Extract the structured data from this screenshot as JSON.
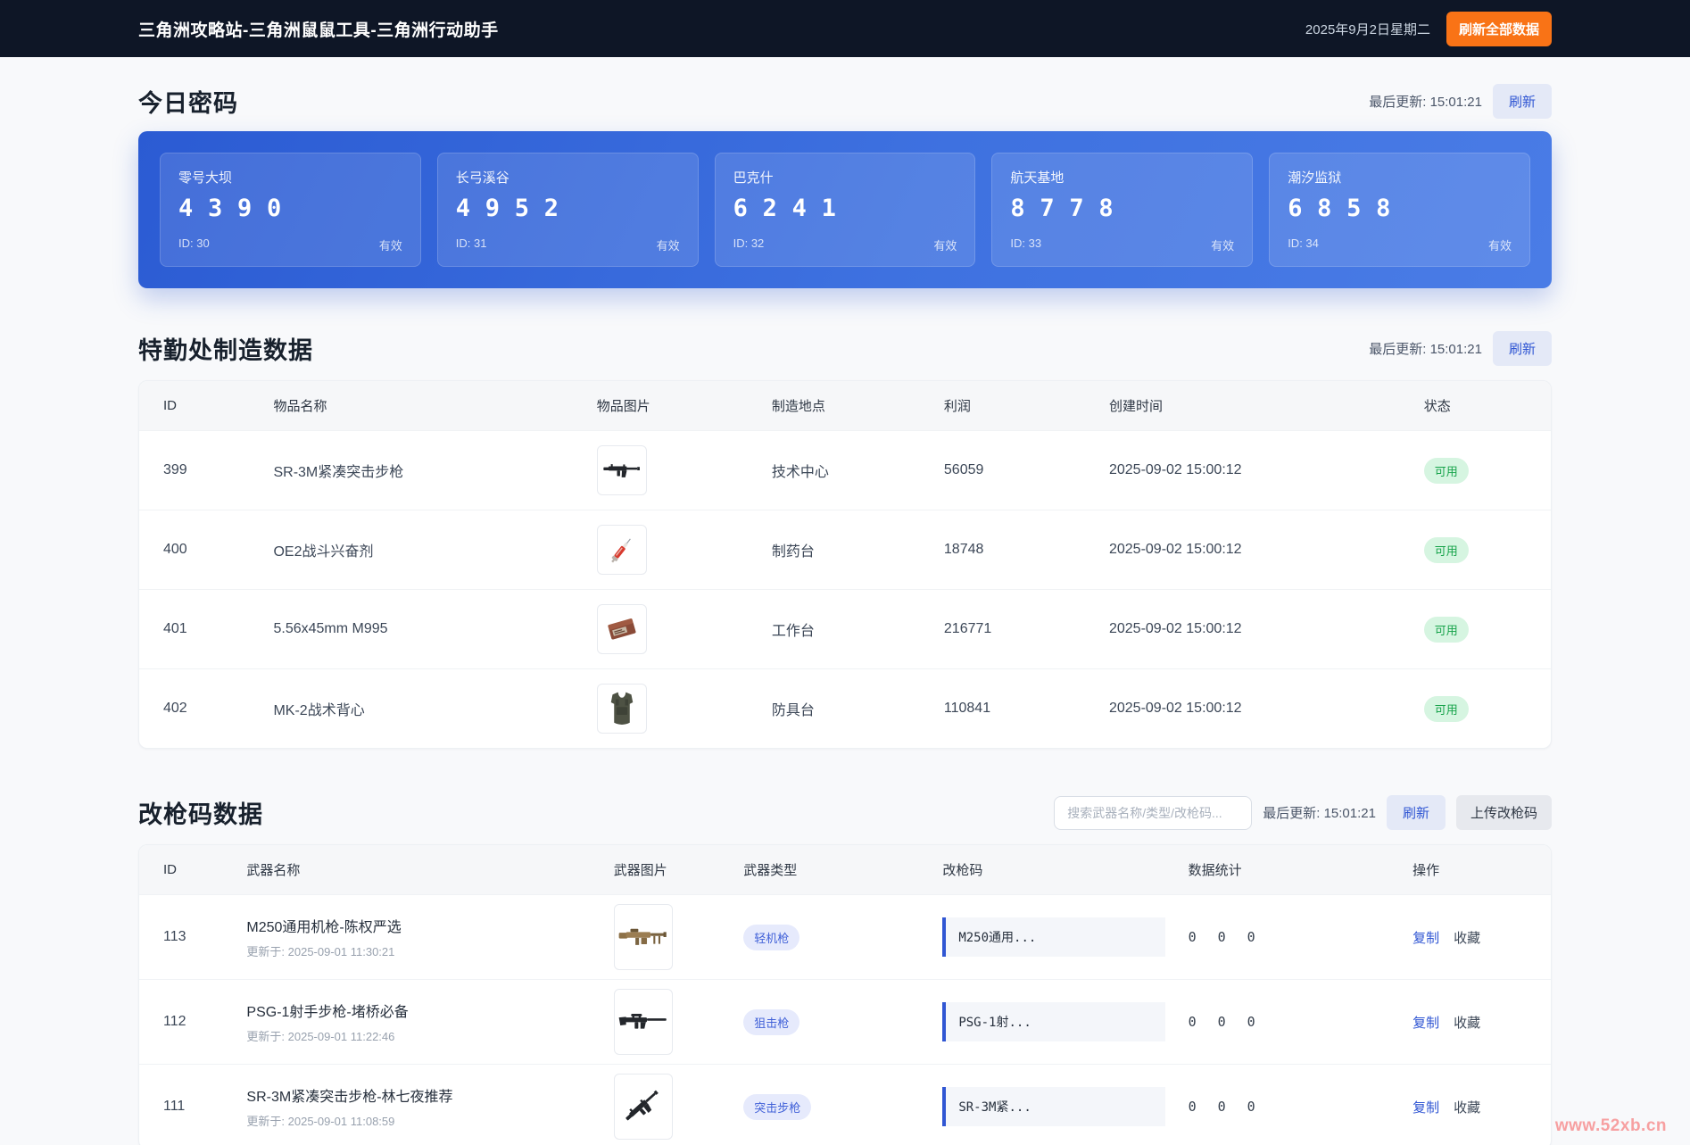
{
  "colors": {
    "accent_blue": "#3056d3",
    "orange": "#f97316",
    "panel_blue": "#2b5bd3",
    "status_green": "#16a34a",
    "badge_blue_text": "#4161d8"
  },
  "navbar": {
    "title": "三角洲攻略站-三角洲鼠鼠工具-三角洲行动助手",
    "date": "2025年9月2日星期二",
    "refresh_all_label": "刷新全部数据"
  },
  "password_section": {
    "title": "今日密码",
    "last_update": "最后更新: 15:01:21",
    "refresh_label": "刷新",
    "cards": [
      {
        "map": "零号大坝",
        "code": "4390",
        "id_label": "ID: 30",
        "status": "有效"
      },
      {
        "map": "长弓溪谷",
        "code": "4952",
        "id_label": "ID: 31",
        "status": "有效"
      },
      {
        "map": "巴克什",
        "code": "6241",
        "id_label": "ID: 32",
        "status": "有效"
      },
      {
        "map": "航天基地",
        "code": "8778",
        "id_label": "ID: 33",
        "status": "有效"
      },
      {
        "map": "潮汐监狱",
        "code": "6858",
        "id_label": "ID: 34",
        "status": "有效"
      }
    ]
  },
  "craft_section": {
    "title": "特勤处制造数据",
    "last_update": "最后更新: 15:01:21",
    "refresh_label": "刷新",
    "headers": [
      "ID",
      "物品名称",
      "物品图片",
      "制造地点",
      "利润",
      "创建时间",
      "状态"
    ],
    "rows": [
      {
        "id": "399",
        "name": "SR-3M紧凑突击步枪",
        "image": "rifle-compact",
        "place": "技术中心",
        "profit": "56059",
        "created": "2025-09-02 15:00:12",
        "status": "可用"
      },
      {
        "id": "400",
        "name": "OE2战斗兴奋剂",
        "image": "syringe",
        "place": "制药台",
        "profit": "18748",
        "created": "2025-09-02 15:00:12",
        "status": "可用"
      },
      {
        "id": "401",
        "name": "5.56x45mm M995",
        "image": "ammo-box",
        "place": "工作台",
        "profit": "216771",
        "created": "2025-09-02 15:00:12",
        "status": "可用"
      },
      {
        "id": "402",
        "name": "MK-2战术背心",
        "image": "vest",
        "place": "防具台",
        "profit": "110841",
        "created": "2025-09-02 15:00:12",
        "status": "可用"
      }
    ]
  },
  "mod_section": {
    "title": "改枪码数据",
    "search_placeholder": "搜索武器名称/类型/改枪码...",
    "last_update": "最后更新: 15:01:21",
    "refresh_label": "刷新",
    "upload_label": "上传改枪码",
    "headers": [
      "ID",
      "武器名称",
      "武器图片",
      "武器类型",
      "改枪码",
      "数据统计",
      "操作"
    ],
    "rows": [
      {
        "id": "113",
        "name": "M250通用机枪-陈权严选",
        "updated": "更新于: 2025-09-01 11:30:21",
        "image": "lmg",
        "type": "轻机枪",
        "code": "M250通用...",
        "stats": [
          "0",
          "0",
          "0"
        ],
        "copy_label": "复制",
        "fav_label": "收藏"
      },
      {
        "id": "112",
        "name": "PSG-1射手步枪-堵桥必备",
        "updated": "更新于: 2025-09-01 11:22:46",
        "image": "dmr",
        "type": "狙击枪",
        "code": "PSG-1射...",
        "stats": [
          "0",
          "0",
          "0"
        ],
        "copy_label": "复制",
        "fav_label": "收藏"
      },
      {
        "id": "111",
        "name": "SR-3M紧凑突击步枪-林七夜推荐",
        "updated": "更新于: 2025-09-01 11:08:59",
        "image": "rifle-compact-angled",
        "type": "突击步枪",
        "code": "SR-3M紧...",
        "stats": [
          "0",
          "0",
          "0"
        ],
        "copy_label": "复制",
        "fav_label": "收藏"
      }
    ]
  },
  "watermark": "www.52xb.cn"
}
